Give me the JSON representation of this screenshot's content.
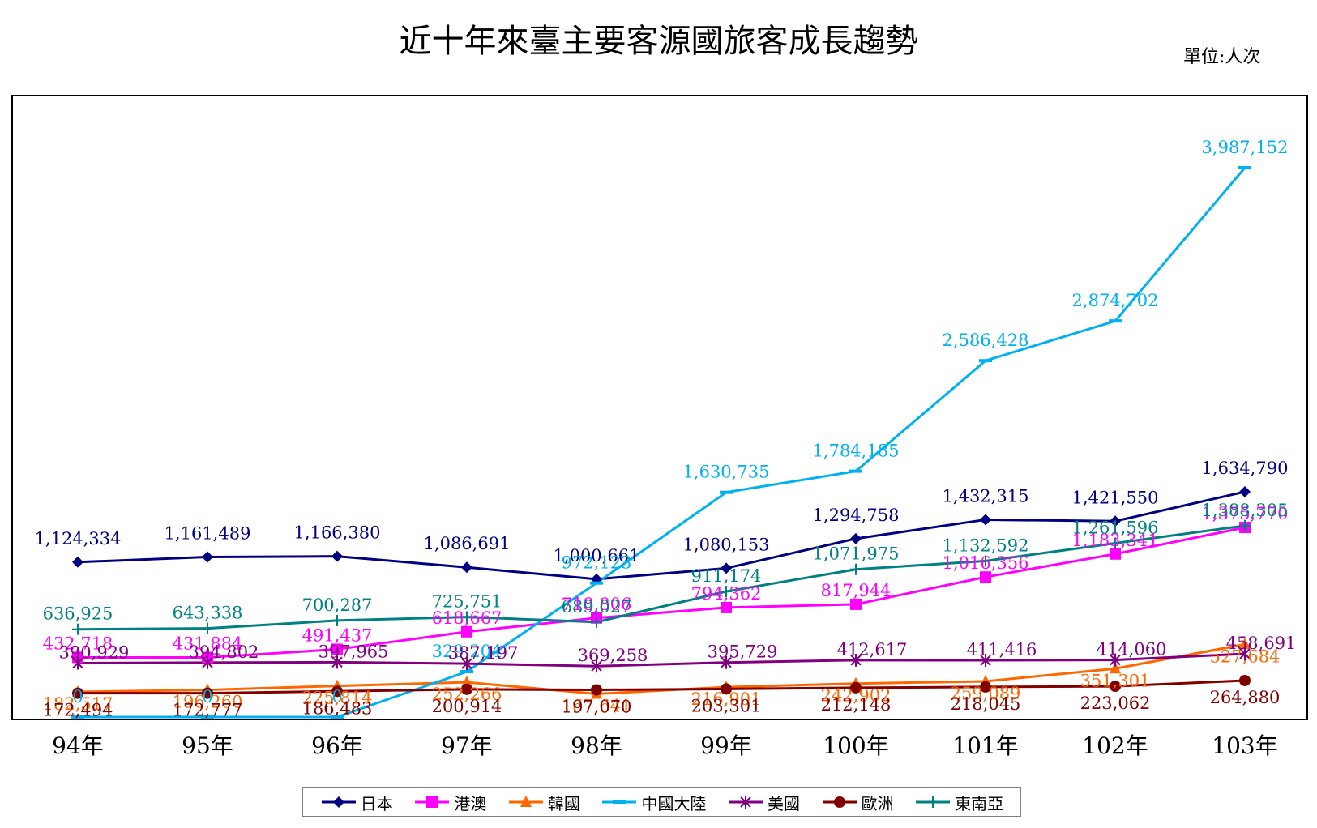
{
  "chart_data": {
    "type": "line",
    "title": "近十年來臺主要客源國旅客成長趨勢",
    "unit": "單位:人次",
    "categories": [
      "94年",
      "95年",
      "96年",
      "97年",
      "98年",
      "99年",
      "100年",
      "101年",
      "102年",
      "103年"
    ],
    "ylim": [
      0,
      4200000
    ],
    "grid": false,
    "legend_position": "bottom",
    "series": [
      {
        "name": "日本",
        "color": "#000080",
        "marker": "diamond",
        "values": [
          1124334,
          1161489,
          1166380,
          1086691,
          1000661,
          1080153,
          1294758,
          1432315,
          1421550,
          1634790
        ],
        "labels": [
          "1,124,334",
          "1,161,489",
          "1,166,380",
          "1,086,691",
          "1,000,661",
          "1,080,153",
          "1,294,758",
          "1,432,315",
          "1,421,550",
          "1,634,790"
        ]
      },
      {
        "name": "港澳",
        "color": "#FF00FF",
        "marker": "square",
        "values": [
          432718,
          431884,
          491437,
          618667,
          718806,
          794362,
          817944,
          1016356,
          1183341,
          1375770
        ],
        "labels": [
          "432,718",
          "431,884",
          "491,437",
          "618,667",
          "718,806",
          "794,362",
          "817,944",
          "1,016,356",
          "1,183,341",
          "1,375,770"
        ]
      },
      {
        "name": "韓國",
        "color": "#FF6600",
        "marker": "triangle",
        "values": [
          182517,
          196260,
          225814,
          252266,
          167641,
          216901,
          242902,
          259089,
          351301,
          527684
        ],
        "labels": [
          "182,517",
          "196,260",
          "225,814",
          "252,266",
          "167,641",
          "216,901",
          "242,902",
          "259,089",
          "351,301",
          "527,684"
        ]
      },
      {
        "name": "中國大陸",
        "color": "#00B0F0",
        "marker": "dash",
        "values": [
          0,
          0,
          0,
          329204,
          972123,
          1630735,
          1784185,
          2586428,
          2874702,
          3987152
        ],
        "labels": [
          "0",
          "0",
          "0",
          "329,204",
          "972,123",
          "1,630,735",
          "1,784,185",
          "2,586,428",
          "2,874,702",
          "3,987,152"
        ]
      },
      {
        "name": "美國",
        "color": "#800080",
        "marker": "star",
        "values": [
          390929,
          394802,
          397965,
          387197,
          369258,
          395729,
          412617,
          411416,
          414060,
          458691
        ],
        "labels": [
          "390,929",
          "394,802",
          "397,965",
          "387,197",
          "369,258",
          "395,729",
          "412,617",
          "411,416",
          "414,060",
          "458,691"
        ]
      },
      {
        "name": "歐洲",
        "color": "#800000",
        "marker": "circle",
        "values": [
          172494,
          172777,
          186483,
          200914,
          197070,
          203301,
          212148,
          218045,
          223062,
          264880
        ],
        "labels": [
          "172,494",
          "172,777",
          "186,483",
          "200,914",
          "197,070",
          "203,301",
          "212,148",
          "218,045",
          "223,062",
          "264,880"
        ]
      },
      {
        "name": "東南亞",
        "color": "#008080",
        "marker": "plus",
        "values": [
          636925,
          643338,
          700287,
          725751,
          689027,
          911174,
          1071975,
          1132592,
          1261596,
          1388305
        ],
        "labels": [
          "636,925",
          "643,338",
          "700,287",
          "725,751",
          "689,027",
          "911,174",
          "1,071,975",
          "1,132,592",
          "1,261,596",
          "1,388,305"
        ]
      }
    ]
  }
}
